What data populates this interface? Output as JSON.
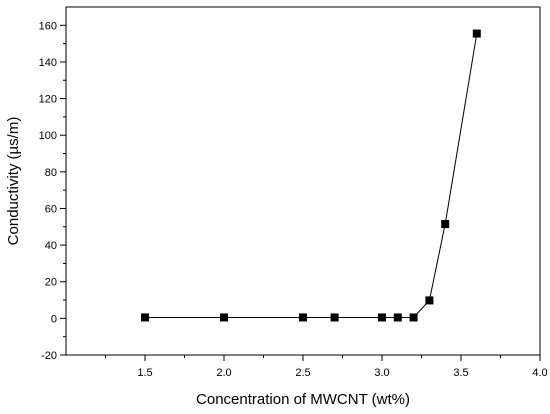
{
  "chart_data": {
    "type": "line",
    "title": "",
    "xlabel": "Concentration of MWCNT (wt%)",
    "ylabel": "Conductivity (µs/m)",
    "xlim": [
      1.0,
      4.0
    ],
    "ylim": [
      -20,
      170
    ],
    "x_ticks": [
      "1.5",
      "2.0",
      "2.5",
      "3.0",
      "3.5",
      "4.0"
    ],
    "y_ticks": [
      "-20",
      "0",
      "20",
      "40",
      "60",
      "80",
      "100",
      "120",
      "140",
      "160"
    ],
    "grid": false,
    "legend": "none",
    "marker": "square",
    "series": [
      {
        "x": [
          1.5,
          2.0,
          2.5,
          2.7,
          3.0,
          3.1,
          3.2,
          3.3,
          3.4,
          3.6
        ],
        "y": [
          0.5,
          0.5,
          0.5,
          0.5,
          0.5,
          0.5,
          0.5,
          9.8,
          51.5,
          155.5
        ],
        "color": "#000000"
      }
    ]
  }
}
